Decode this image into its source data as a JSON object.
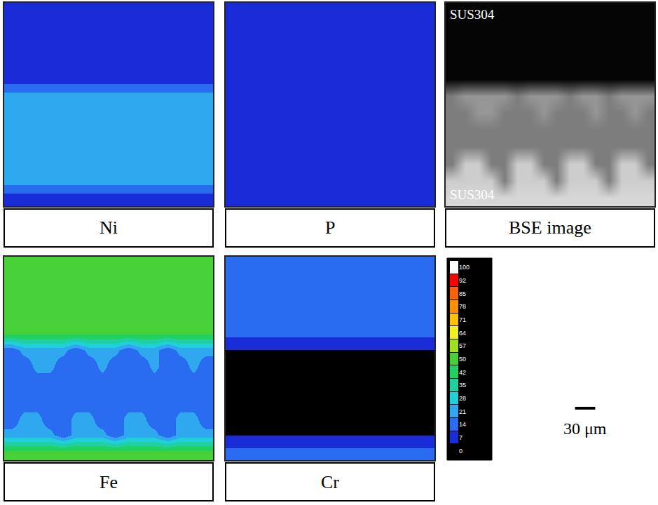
{
  "chart_data": [
    {
      "type": "heatmap",
      "title": "Ni",
      "xlim": [
        0,
        310
      ],
      "ylim": [
        0,
        295
      ],
      "tick_labels": false,
      "z": [
        [
          10,
          10,
          10,
          10,
          10,
          10,
          10,
          10,
          10,
          10,
          10,
          10,
          10,
          10,
          10,
          10
        ],
        [
          10,
          10,
          10,
          10,
          10,
          10,
          10,
          10,
          10,
          10,
          10,
          10,
          10,
          10,
          10,
          10
        ],
        [
          10,
          10,
          10,
          10,
          10,
          10,
          10,
          10,
          10,
          10,
          10,
          10,
          10,
          10,
          10,
          10
        ],
        [
          10,
          10,
          10,
          10,
          10,
          10,
          10,
          10,
          10,
          10,
          10,
          10,
          10,
          10,
          10,
          10
        ],
        [
          10,
          10,
          10,
          10,
          10,
          10,
          10,
          10,
          10,
          10,
          10,
          10,
          10,
          10,
          10,
          10
        ],
        [
          24,
          24,
          24,
          24,
          24,
          24,
          24,
          24,
          24,
          24,
          24,
          24,
          24,
          24,
          24,
          24
        ],
        [
          24,
          24,
          24,
          24,
          24,
          24,
          24,
          24,
          24,
          24,
          24,
          24,
          24,
          24,
          24,
          24
        ],
        [
          24,
          24,
          24,
          24,
          24,
          24,
          24,
          24,
          24,
          24,
          24,
          24,
          24,
          24,
          24,
          24
        ],
        [
          24,
          24,
          24,
          24,
          24,
          24,
          24,
          24,
          24,
          24,
          24,
          24,
          24,
          24,
          24,
          24
        ],
        [
          24,
          24,
          24,
          24,
          24,
          24,
          24,
          24,
          24,
          24,
          24,
          24,
          24,
          24,
          24,
          24
        ],
        [
          24,
          24,
          24,
          24,
          24,
          24,
          24,
          24,
          24,
          24,
          24,
          24,
          24,
          24,
          24,
          24
        ],
        [
          10,
          10,
          10,
          10,
          10,
          10,
          10,
          10,
          10,
          10,
          10,
          10,
          10,
          10,
          10,
          10
        ]
      ]
    },
    {
      "type": "heatmap",
      "title": "P",
      "xlim": [
        0,
        310
      ],
      "ylim": [
        0,
        295
      ],
      "tick_labels": false,
      "z": [
        [
          8,
          8,
          8,
          8,
          8,
          8,
          8,
          8,
          8,
          8,
          8,
          8,
          8,
          8,
          8,
          8
        ],
        [
          8,
          8,
          8,
          8,
          8,
          8,
          8,
          8,
          8,
          8,
          8,
          8,
          8,
          8,
          8,
          8
        ],
        [
          8,
          8,
          8,
          8,
          8,
          8,
          8,
          8,
          8,
          8,
          8,
          8,
          8,
          8,
          8,
          8
        ],
        [
          8,
          8,
          8,
          8,
          8,
          8,
          8,
          8,
          8,
          8,
          8,
          8,
          8,
          8,
          8,
          8
        ],
        [
          8,
          8,
          8,
          8,
          8,
          8,
          8,
          8,
          8,
          8,
          8,
          8,
          8,
          8,
          8,
          8
        ],
        [
          14,
          8,
          8,
          8,
          8,
          14,
          8,
          8,
          8,
          14,
          8,
          8,
          14,
          8,
          8,
          8
        ],
        [
          14,
          14,
          8,
          8,
          14,
          14,
          14,
          8,
          14,
          14,
          14,
          8,
          14,
          14,
          8,
          14
        ],
        [
          14,
          14,
          14,
          14,
          14,
          14,
          14,
          14,
          14,
          14,
          14,
          14,
          14,
          14,
          14,
          14
        ],
        [
          14,
          14,
          14,
          14,
          14,
          14,
          14,
          14,
          14,
          14,
          14,
          14,
          14,
          14,
          14,
          14
        ],
        [
          14,
          8,
          8,
          14,
          14,
          8,
          8,
          14,
          14,
          8,
          8,
          14,
          14,
          8,
          8,
          14
        ],
        [
          8,
          8,
          8,
          8,
          14,
          8,
          8,
          8,
          14,
          8,
          8,
          8,
          14,
          8,
          8,
          8
        ],
        [
          8,
          8,
          8,
          8,
          8,
          8,
          8,
          8,
          8,
          8,
          8,
          8,
          8,
          8,
          8,
          8
        ]
      ]
    },
    {
      "type": "heatmap",
      "title": "BSE image",
      "xlim": [
        0,
        310
      ],
      "ylim": [
        0,
        295
      ],
      "tick_labels": false,
      "color": "gray",
      "zlim": [
        0,
        255
      ],
      "annotations": [
        "SUS304",
        "SUS304"
      ],
      "z": [
        [
          5,
          5,
          5,
          5,
          5,
          5,
          5,
          5,
          5,
          5,
          5,
          5,
          5,
          5,
          5,
          5
        ],
        [
          5,
          5,
          5,
          5,
          5,
          5,
          5,
          5,
          5,
          5,
          5,
          5,
          5,
          5,
          5,
          5
        ],
        [
          5,
          5,
          5,
          5,
          5,
          5,
          5,
          5,
          5,
          5,
          5,
          5,
          5,
          5,
          5,
          5
        ],
        [
          5,
          5,
          5,
          5,
          5,
          5,
          5,
          5,
          5,
          5,
          5,
          5,
          5,
          5,
          5,
          5
        ],
        [
          5,
          5,
          5,
          5,
          5,
          5,
          5,
          5,
          5,
          5,
          5,
          5,
          5,
          5,
          5,
          5
        ],
        [
          125,
          150,
          150,
          150,
          150,
          125,
          150,
          150,
          150,
          125,
          150,
          150,
          125,
          150,
          150,
          150
        ],
        [
          125,
          125,
          150,
          150,
          125,
          125,
          125,
          150,
          125,
          125,
          125,
          150,
          125,
          125,
          150,
          125
        ],
        [
          125,
          125,
          125,
          125,
          125,
          125,
          125,
          125,
          125,
          125,
          125,
          125,
          125,
          125,
          125,
          125
        ],
        [
          125,
          125,
          125,
          125,
          125,
          125,
          125,
          125,
          125,
          125,
          125,
          125,
          125,
          125,
          125,
          125
        ],
        [
          125,
          205,
          205,
          125,
          125,
          205,
          205,
          125,
          125,
          205,
          205,
          125,
          125,
          205,
          205,
          125
        ],
        [
          205,
          205,
          205,
          205,
          125,
          205,
          205,
          205,
          125,
          205,
          205,
          205,
          125,
          205,
          205,
          205
        ],
        [
          215,
          215,
          215,
          215,
          215,
          215,
          215,
          215,
          215,
          215,
          215,
          215,
          215,
          215,
          215,
          215
        ]
      ]
    },
    {
      "type": "heatmap",
      "title": "Fe",
      "xlim": [
        0,
        310
      ],
      "ylim": [
        0,
        295
      ],
      "tick_labels": false,
      "z": [
        [
          52,
          52,
          52,
          52,
          52,
          52,
          52,
          52,
          52,
          52,
          52,
          52,
          52,
          52,
          52,
          52
        ],
        [
          52,
          52,
          52,
          52,
          52,
          52,
          52,
          52,
          52,
          52,
          52,
          52,
          52,
          52,
          52,
          52
        ],
        [
          52,
          52,
          52,
          52,
          52,
          52,
          52,
          52,
          52,
          52,
          52,
          52,
          52,
          52,
          52,
          52
        ],
        [
          52,
          52,
          52,
          52,
          52,
          52,
          52,
          52,
          52,
          52,
          52,
          52,
          52,
          52,
          52,
          52
        ],
        [
          52,
          52,
          52,
          52,
          52,
          52,
          52,
          52,
          52,
          52,
          52,
          52,
          52,
          52,
          52,
          52
        ],
        [
          15,
          24,
          24,
          24,
          24,
          15,
          24,
          24,
          24,
          15,
          24,
          24,
          15,
          24,
          24,
          24
        ],
        [
          15,
          15,
          24,
          24,
          15,
          15,
          15,
          24,
          15,
          15,
          15,
          24,
          15,
          15,
          24,
          15
        ],
        [
          15,
          15,
          15,
          15,
          15,
          15,
          15,
          15,
          15,
          15,
          15,
          15,
          15,
          15,
          15,
          15
        ],
        [
          15,
          15,
          15,
          15,
          15,
          15,
          15,
          15,
          15,
          15,
          15,
          15,
          15,
          15,
          15,
          15
        ],
        [
          15,
          24,
          24,
          15,
          15,
          24,
          24,
          15,
          15,
          24,
          24,
          15,
          15,
          24,
          24,
          15
        ],
        [
          24,
          24,
          24,
          24,
          15,
          24,
          24,
          24,
          15,
          24,
          24,
          24,
          15,
          24,
          24,
          24
        ],
        [
          52,
          52,
          52,
          52,
          52,
          52,
          52,
          52,
          52,
          52,
          52,
          52,
          52,
          52,
          52,
          52
        ]
      ]
    },
    {
      "type": "heatmap",
      "title": "Cr",
      "xlim": [
        0,
        310
      ],
      "ylim": [
        0,
        295
      ],
      "tick_labels": false,
      "z": [
        [
          16,
          16,
          16,
          16,
          16,
          16,
          16,
          16,
          16,
          16,
          16,
          16,
          16,
          16,
          16,
          16
        ],
        [
          16,
          16,
          16,
          16,
          16,
          16,
          16,
          16,
          16,
          16,
          16,
          16,
          16,
          16,
          16,
          16
        ],
        [
          16,
          16,
          16,
          16,
          16,
          16,
          16,
          16,
          16,
          16,
          16,
          16,
          16,
          16,
          16,
          16
        ],
        [
          16,
          16,
          16,
          16,
          16,
          16,
          16,
          16,
          16,
          16,
          16,
          16,
          16,
          16,
          16,
          16
        ],
        [
          16,
          16,
          16,
          16,
          16,
          16,
          16,
          16,
          16,
          16,
          16,
          16,
          16,
          16,
          16,
          16
        ],
        [
          7,
          7,
          7,
          7,
          7,
          7,
          7,
          7,
          7,
          7,
          7,
          7,
          7,
          7,
          7,
          7
        ],
        [
          7,
          7,
          7,
          7,
          7,
          7,
          7,
          7,
          7,
          7,
          7,
          7,
          7,
          7,
          7,
          7
        ],
        [
          7,
          7,
          7,
          7,
          7,
          7,
          7,
          7,
          7,
          7,
          7,
          7,
          7,
          7,
          7,
          7
        ],
        [
          7,
          7,
          7,
          7,
          7,
          7,
          7,
          7,
          7,
          7,
          7,
          7,
          7,
          7,
          7,
          7
        ],
        [
          7,
          7,
          7,
          7,
          7,
          7,
          7,
          7,
          7,
          7,
          7,
          7,
          7,
          7,
          7,
          7
        ],
        [
          7,
          7,
          7,
          7,
          7,
          7,
          7,
          7,
          7,
          7,
          7,
          7,
          7,
          7,
          7,
          7
        ],
        [
          16,
          16,
          16,
          16,
          16,
          16,
          16,
          16,
          16,
          16,
          16,
          16,
          16,
          16,
          16,
          16
        ]
      ]
    }
  ],
  "colorbar": {
    "range": [
      0,
      100
    ],
    "ticks": [
      0,
      7,
      14,
      21,
      28,
      35,
      42,
      50,
      57,
      64,
      71,
      78,
      85,
      92,
      100
    ],
    "colors": [
      "#000000",
      "#1a2cd8",
      "#2a6cf0",
      "#30a8f0",
      "#20d0d8",
      "#20d0a0",
      "#20d060",
      "#48d038",
      "#a0e020",
      "#f0f020",
      "#ffc000",
      "#ff9000",
      "#ff6000",
      "#ff0000",
      "#ffffff"
    ]
  },
  "scale_bar": {
    "length": 30,
    "label": "30 μm"
  }
}
